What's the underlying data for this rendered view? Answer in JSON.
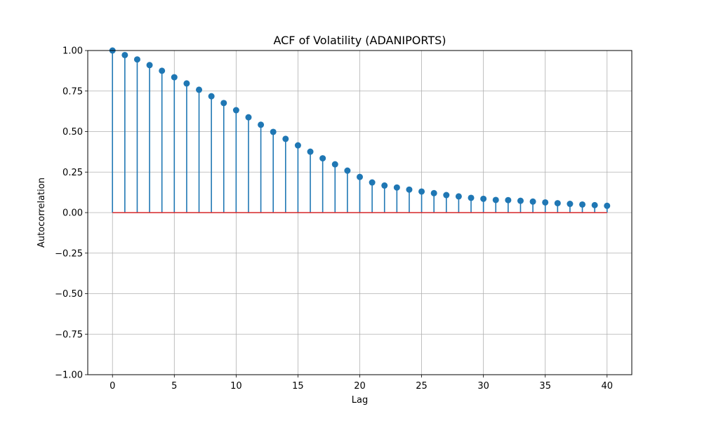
{
  "chart_data": {
    "type": "stem",
    "title": "ACF of Volatility (ADANIPORTS)",
    "xlabel": "Lag",
    "ylabel": "Autocorrelation",
    "xlim": [
      -2,
      42
    ],
    "ylim": [
      -1.0,
      1.0
    ],
    "xticks": [
      0,
      5,
      10,
      15,
      20,
      25,
      30,
      35,
      40
    ],
    "yticks": [
      -1.0,
      -0.75,
      -0.5,
      -0.25,
      0.0,
      0.25,
      0.5,
      0.75,
      1.0
    ],
    "ytick_labels": [
      "−1.00",
      "−0.75",
      "−0.50",
      "−0.25",
      "0.00",
      "0.25",
      "0.50",
      "0.75",
      "1.00"
    ],
    "grid": true,
    "x": [
      0,
      1,
      2,
      3,
      4,
      5,
      6,
      7,
      8,
      9,
      10,
      11,
      12,
      13,
      14,
      15,
      16,
      17,
      18,
      19,
      20,
      21,
      22,
      23,
      24,
      25,
      26,
      27,
      28,
      29,
      30,
      31,
      32,
      33,
      34,
      35,
      36,
      37,
      38,
      39,
      40
    ],
    "values": [
      1.0,
      0.972,
      0.945,
      0.91,
      0.875,
      0.835,
      0.797,
      0.758,
      0.718,
      0.676,
      0.632,
      0.588,
      0.542,
      0.498,
      0.455,
      0.415,
      0.376,
      0.335,
      0.298,
      0.259,
      0.22,
      0.186,
      0.167,
      0.155,
      0.142,
      0.13,
      0.12,
      0.108,
      0.1,
      0.091,
      0.085,
      0.078,
      0.077,
      0.073,
      0.068,
      0.063,
      0.058,
      0.054,
      0.05,
      0.046,
      0.042
    ],
    "colors": {
      "marker": "#1f77b4",
      "stem": "#1f77b4",
      "baseline": "#d62728",
      "grid": "#b0b0b0",
      "axes": "#000000"
    }
  }
}
